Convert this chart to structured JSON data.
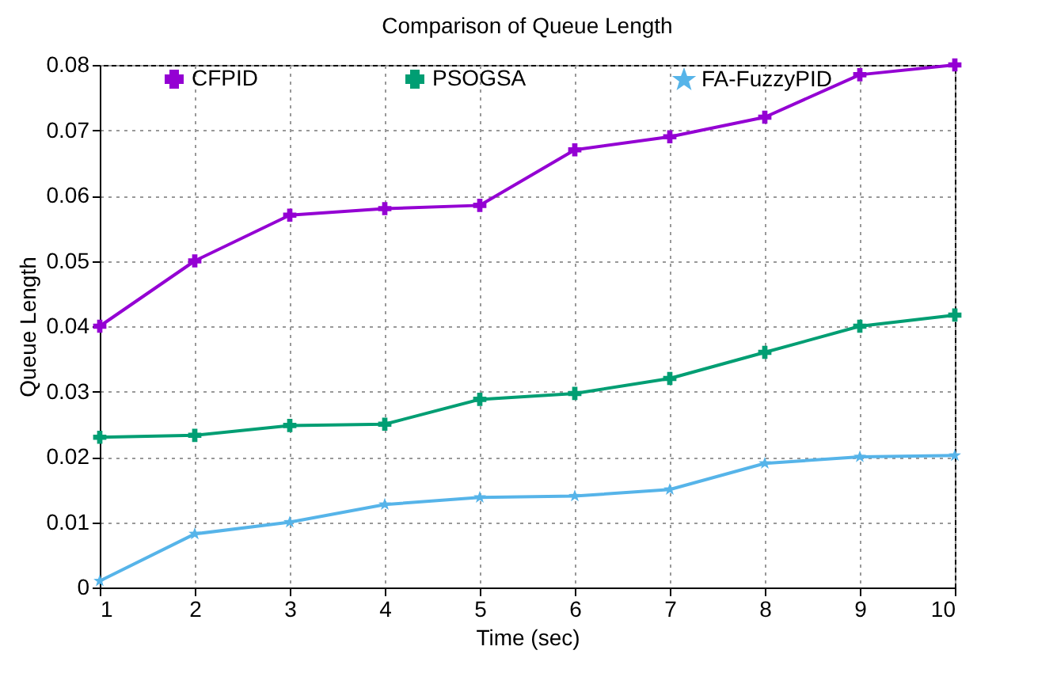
{
  "chart_data": {
    "type": "line",
    "title": "Comparison of Queue Length",
    "xlabel": "Time (sec)",
    "ylabel": "Queue Length",
    "x": [
      1,
      2,
      3,
      4,
      5,
      6,
      7,
      8,
      9,
      10
    ],
    "series": [
      {
        "name": "CFPID",
        "color": "#9400d3",
        "marker": "cross",
        "values": [
          0.04,
          0.05,
          0.057,
          0.058,
          0.0585,
          0.067,
          0.069,
          0.072,
          0.0785,
          0.08
        ]
      },
      {
        "name": "PSOGSA",
        "color": "#009e73",
        "marker": "cross",
        "values": [
          0.023,
          0.0233,
          0.0248,
          0.025,
          0.0288,
          0.0297,
          0.032,
          0.036,
          0.04,
          0.0417
        ]
      },
      {
        "name": "FA-FuzzyPID",
        "color": "#56b4e9",
        "marker": "star",
        "values": [
          0.001,
          0.0082,
          0.01,
          0.0127,
          0.0138,
          0.014,
          0.015,
          0.019,
          0.02,
          0.0202
        ]
      }
    ],
    "xlim": [
      1,
      10
    ],
    "xticks": [
      1,
      2,
      3,
      4,
      5,
      6,
      7,
      8,
      9,
      10
    ],
    "ylim": [
      0,
      0.08
    ],
    "yticks": [
      0,
      0.01,
      0.02,
      0.03,
      0.04,
      0.05,
      0.06,
      0.07,
      0.08
    ],
    "grid": true,
    "legend": "top",
    "line_style": "solid"
  }
}
